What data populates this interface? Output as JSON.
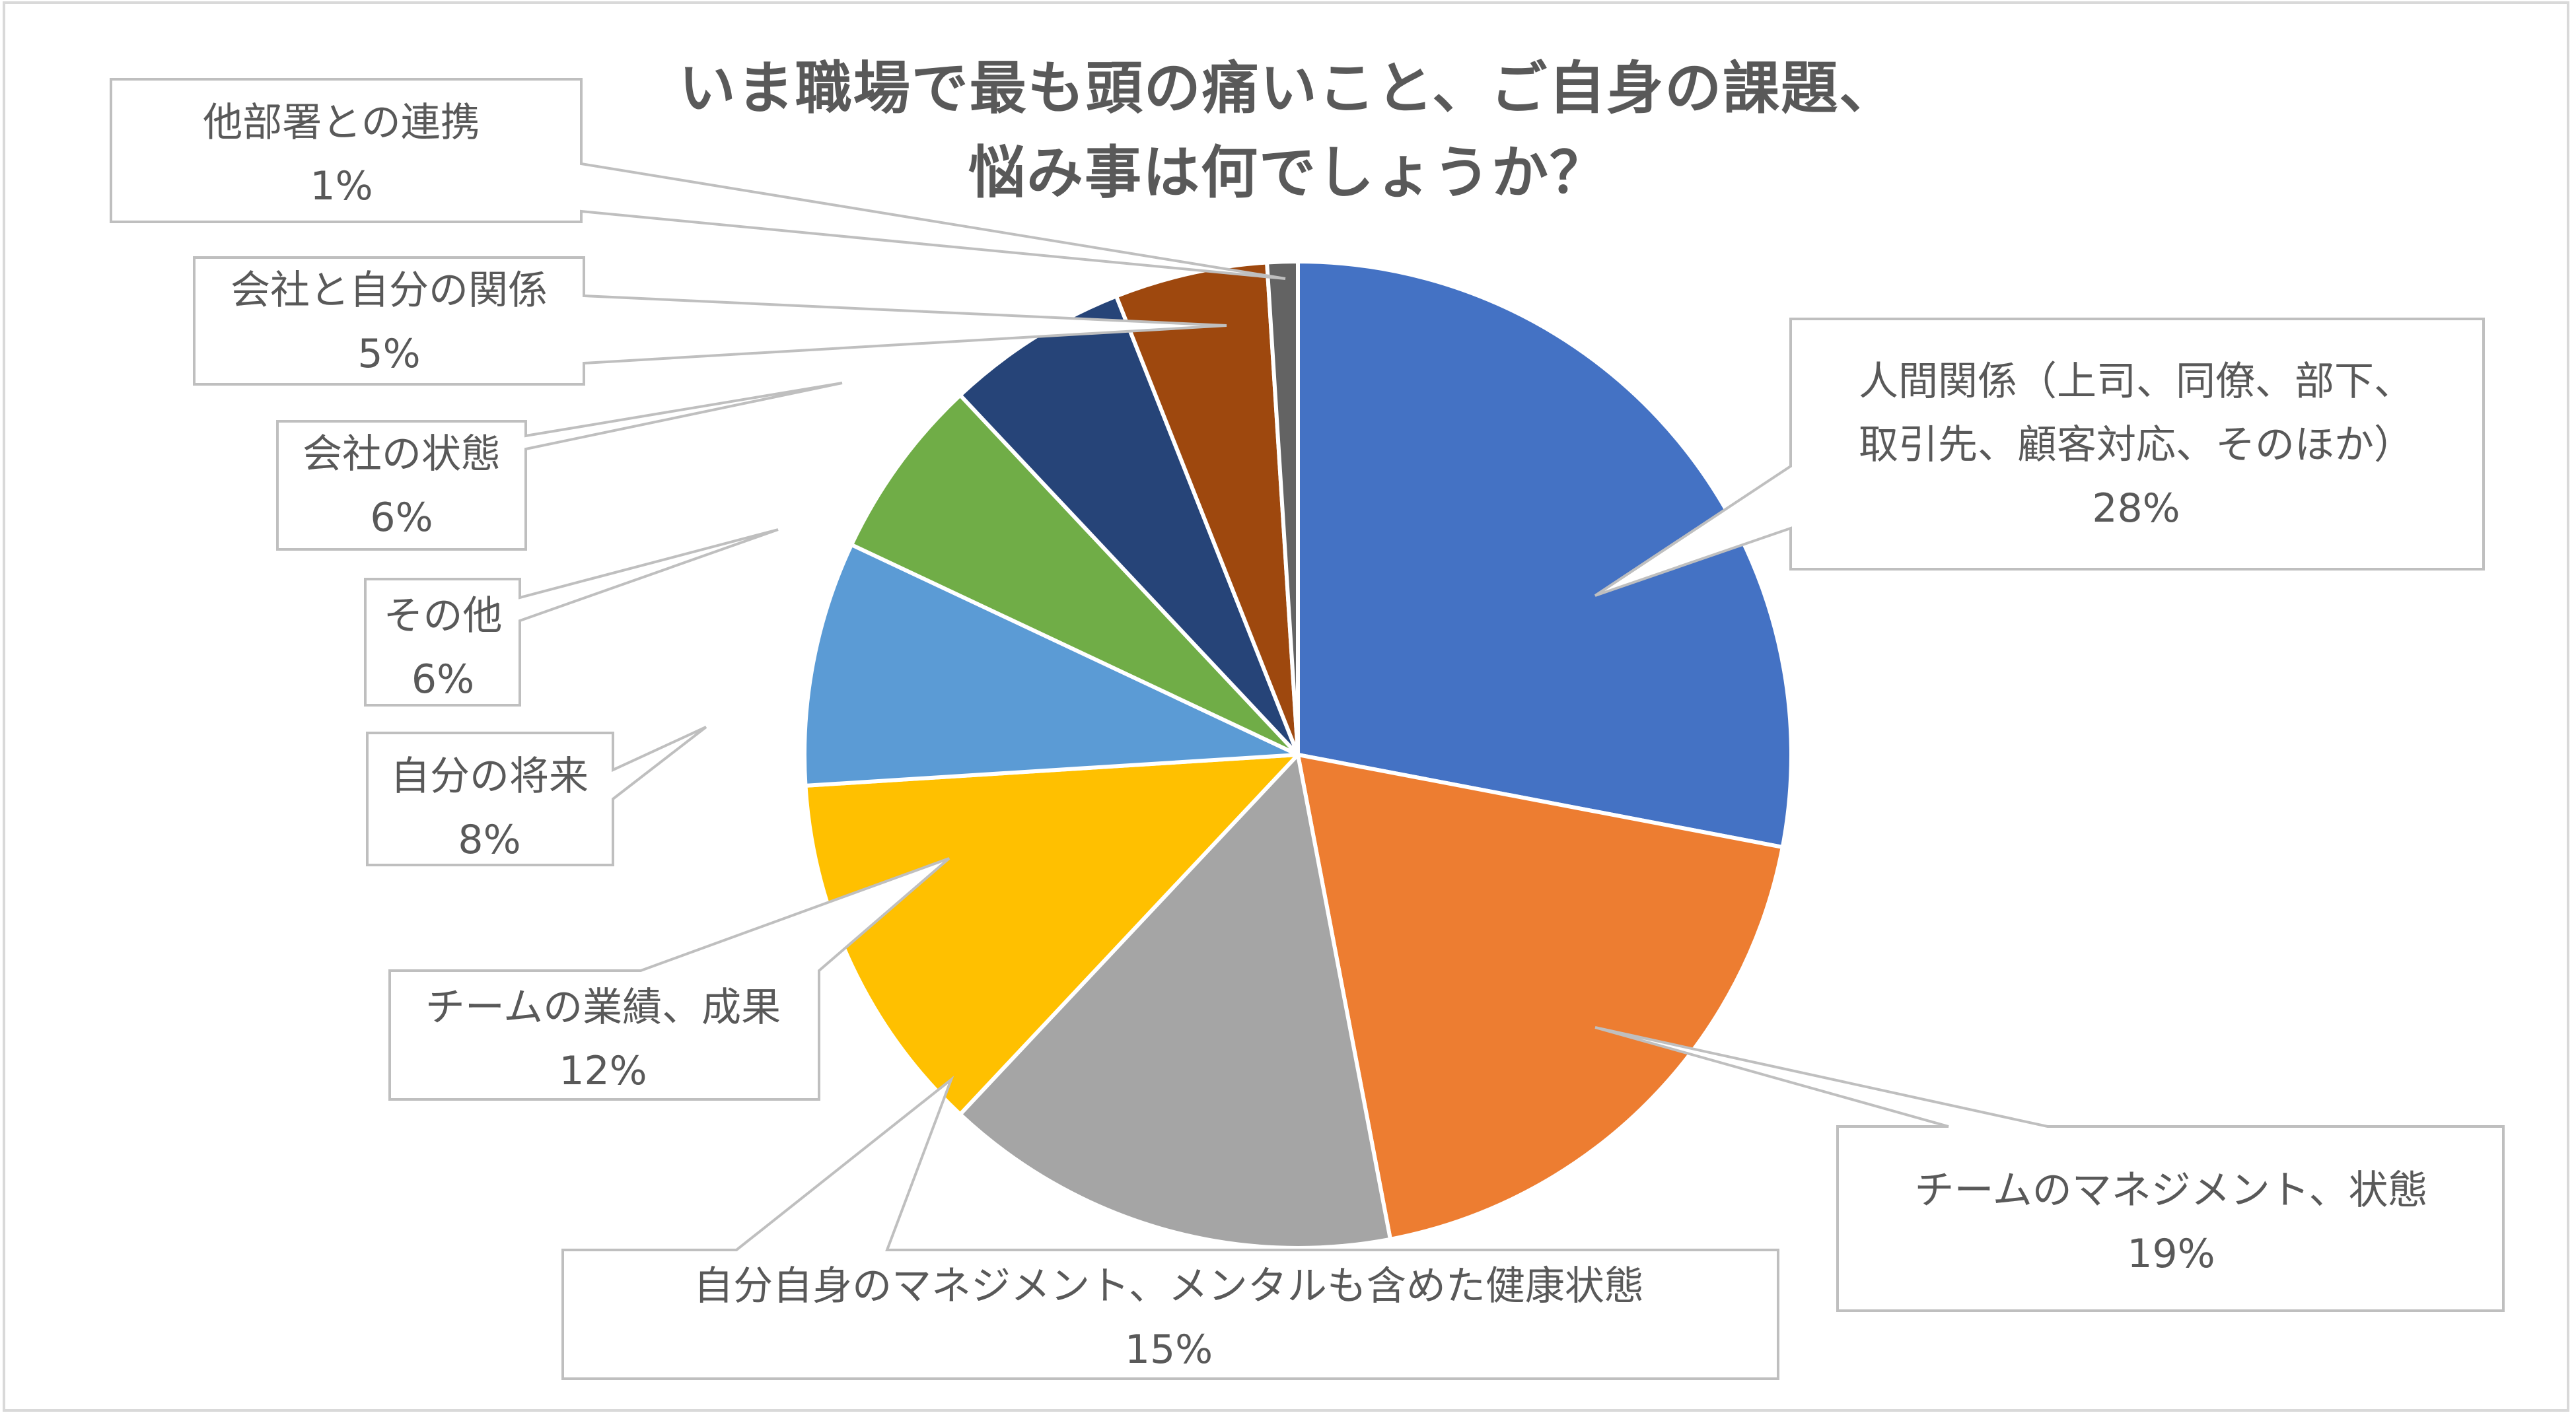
{
  "chart_data": {
    "type": "pie",
    "title": "いま職場で最も頭の痛いこと、ご自身の課題、悩み事は何でしょうか？",
    "title_lines": [
      "いま職場で最も頭の痛いこと、ご自身の課題、",
      "悩み事は何でしょうか？"
    ],
    "start_angle_deg": 0,
    "direction": "clockwise",
    "legend": "none (callout data labels)",
    "slices": [
      {
        "label": "人間関係（上司、同僚、部下、取引先、顧客対応、そのほか）",
        "label_lines": [
          "人間関係（上司、同僚、部下、",
          "取引先、顧客対応、そのほか）"
        ],
        "value": 28,
        "pct_label": "28%",
        "color": "#4472C4"
      },
      {
        "label": "チームのマネジメント、状態",
        "label_lines": [
          "チームのマネジメント、状態"
        ],
        "value": 19,
        "pct_label": "19%",
        "color": "#ED7D31"
      },
      {
        "label": "自分自身のマネジメント、メンタルも含めた健康状態",
        "label_lines": [
          "自分自身のマネジメント、メンタルも含めた健康状態"
        ],
        "value": 15,
        "pct_label": "15%",
        "color": "#A5A5A5"
      },
      {
        "label": "チームの業績、成果",
        "label_lines": [
          "チームの業績、成果"
        ],
        "value": 12,
        "pct_label": "12%",
        "color": "#FFC000"
      },
      {
        "label": "自分の将来",
        "label_lines": [
          "自分の将来"
        ],
        "value": 8,
        "pct_label": "8%",
        "color": "#5B9BD5"
      },
      {
        "label": "その他",
        "label_lines": [
          "その他"
        ],
        "value": 6,
        "pct_label": "6%",
        "color": "#70AD47"
      },
      {
        "label": "会社の状態",
        "label_lines": [
          "会社の状態"
        ],
        "value": 6,
        "pct_label": "6%",
        "color": "#264478"
      },
      {
        "label": "会社と自分の関係",
        "label_lines": [
          "会社と自分の関係"
        ],
        "value": 5,
        "pct_label": "5%",
        "color": "#9E480E"
      },
      {
        "label": "他部署との連携",
        "label_lines": [
          "他部署との連携"
        ],
        "value": 1,
        "pct_label": "1%",
        "color": "#636363"
      }
    ]
  },
  "colors": {
    "text": "#595959",
    "callout_border": "#bfbfbf",
    "frame_border": "#d9d9d9",
    "slice_separator": "#ffffff"
  }
}
